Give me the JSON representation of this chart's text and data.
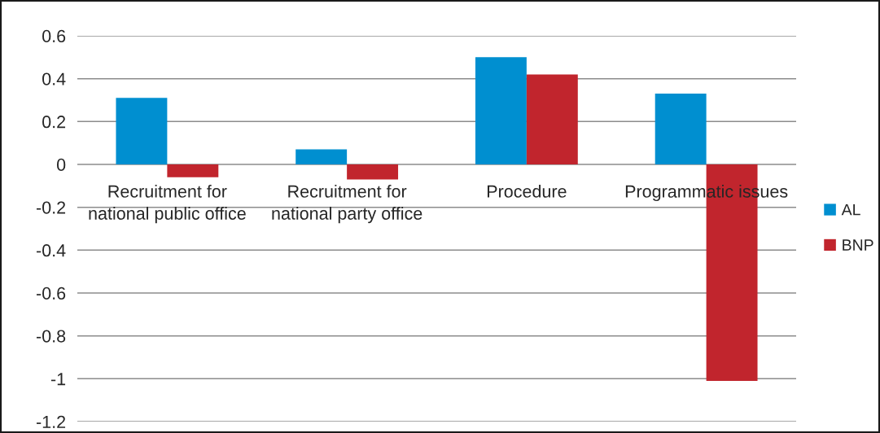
{
  "chart_data": {
    "type": "bar",
    "categories": [
      "Recruitment for\nnational public office",
      "Recruitment for\nnational party office",
      "Procedure",
      "Programmatic issues"
    ],
    "series": [
      {
        "name": "AL",
        "color": "#008fd0",
        "values": [
          0.31,
          0.07,
          0.5,
          0.33
        ]
      },
      {
        "name": "BNP",
        "color": "#c1252d",
        "values": [
          -0.06,
          -0.07,
          0.42,
          -1.01
        ]
      }
    ],
    "ylim": [
      -1.2,
      0.6
    ],
    "yticks": [
      -1.2,
      -1,
      -0.8,
      -0.6,
      -0.4,
      -0.2,
      0,
      0.2,
      0.4,
      0.6
    ],
    "grid": "y",
    "legend": "right"
  }
}
